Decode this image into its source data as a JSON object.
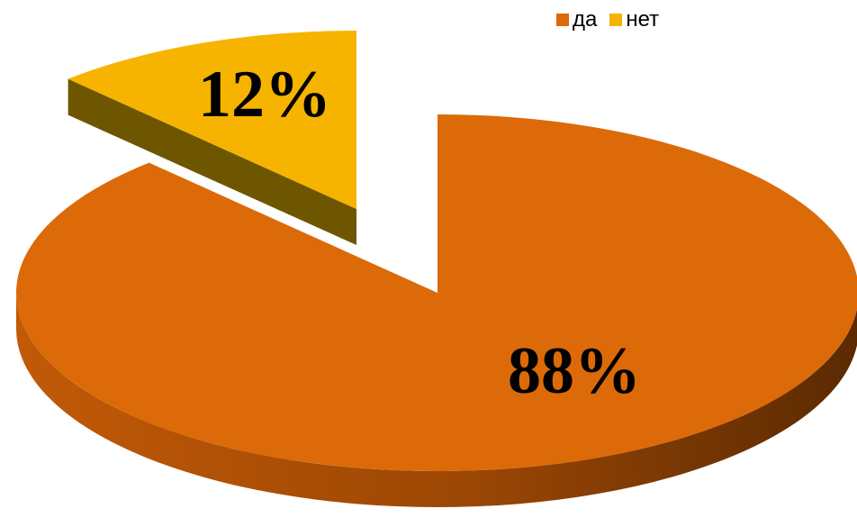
{
  "chart_data": {
    "type": "pie",
    "title": "",
    "categories": [
      "да",
      "нет"
    ],
    "values": [
      88,
      12
    ],
    "data_labels": [
      "88%",
      "12%"
    ],
    "colors": [
      "#DD6A09",
      "#F6B400"
    ],
    "side_colors": [
      "#B85508",
      "#6E5600"
    ],
    "legend": {
      "position": "top-right",
      "entries": [
        "да",
        "нет"
      ]
    },
    "three_d": true,
    "exploded": [
      "нет"
    ]
  }
}
